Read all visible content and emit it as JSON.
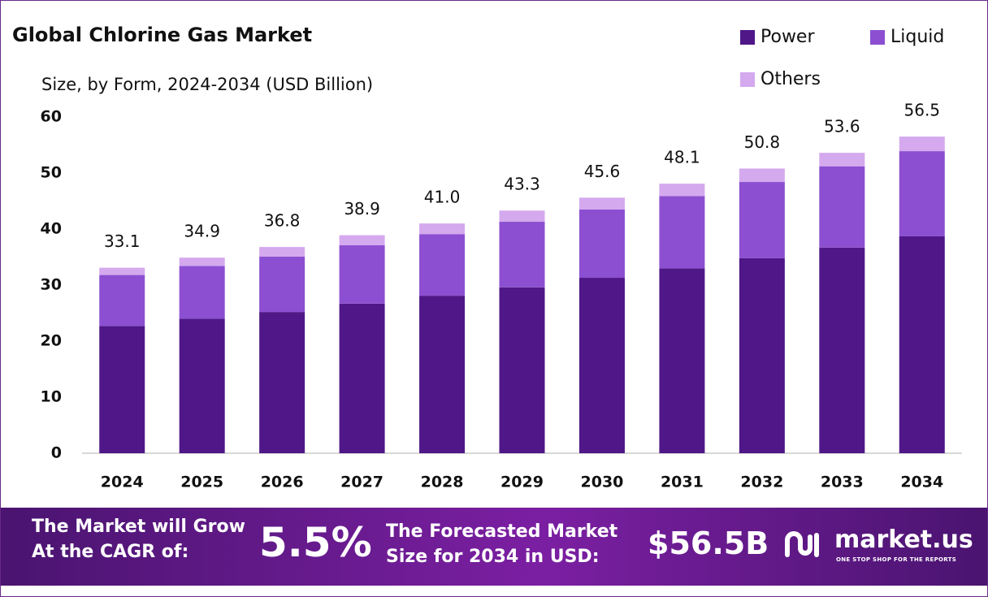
{
  "chart_data": {
    "type": "stacked_bar",
    "title": "Global Chlorine Gas Market",
    "subtitle": "Size, by Form, 2024-2034 (USD Billion)",
    "categories": [
      "2024",
      "2025",
      "2026",
      "2027",
      "2028",
      "2029",
      "2030",
      "2031",
      "2032",
      "2033",
      "2034"
    ],
    "series": [
      {
        "name": "Power",
        "color": "#4f1787",
        "values": [
          22.7,
          24.0,
          25.2,
          26.7,
          28.1,
          29.6,
          31.3,
          33.0,
          34.8,
          36.7,
          38.7
        ]
      },
      {
        "name": "Liquid",
        "color": "#8c4fd1",
        "values": [
          9.1,
          9.4,
          9.9,
          10.4,
          11.0,
          11.7,
          12.2,
          12.9,
          13.6,
          14.5,
          15.2
        ]
      },
      {
        "name": "Others",
        "color": "#d4a9ee",
        "values": [
          1.3,
          1.5,
          1.7,
          1.8,
          1.9,
          2.0,
          2.1,
          2.2,
          2.4,
          2.4,
          2.6
        ]
      }
    ],
    "totals": {
      "values": [
        33.1,
        34.9,
        36.8,
        38.9,
        41.0,
        43.3,
        45.6,
        48.1,
        50.8,
        53.6,
        56.5
      ],
      "value_labels": [
        "33.1",
        "34.9",
        "36.8",
        "38.9",
        "41.0",
        "43.3",
        "45.6",
        "48.1",
        "50.8",
        "53.6",
        "56.5"
      ]
    },
    "ylim": [
      0,
      60
    ],
    "yticks": [
      0,
      10,
      20,
      30,
      40,
      50,
      60
    ],
    "grid": false,
    "legend": "top-right"
  },
  "footer": {
    "cagr_text": [
      "The Market will Grow",
      "At the CAGR of:"
    ],
    "cagr_value": "5.5%",
    "forecast_text": [
      "The Forecasted Market",
      "Size for 2034 in USD:"
    ],
    "forecast_value": "$56.5B",
    "brand": "market.us",
    "tagline": "ONE STOP SHOP FOR THE REPORTS"
  }
}
